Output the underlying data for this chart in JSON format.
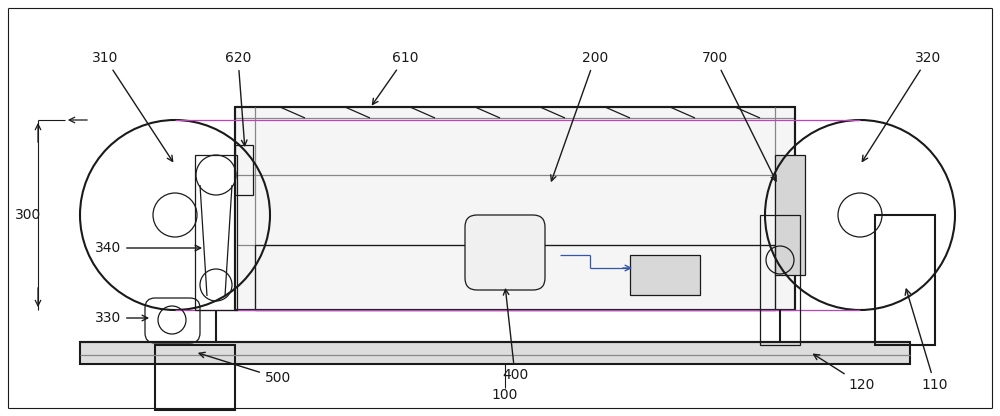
{
  "bg_color": "#ffffff",
  "lc": "#1a1a1a",
  "magenta": "#bb44bb",
  "blue": "#3355aa",
  "figsize": [
    10.0,
    4.16
  ],
  "dpi": 100,
  "fs": 10
}
